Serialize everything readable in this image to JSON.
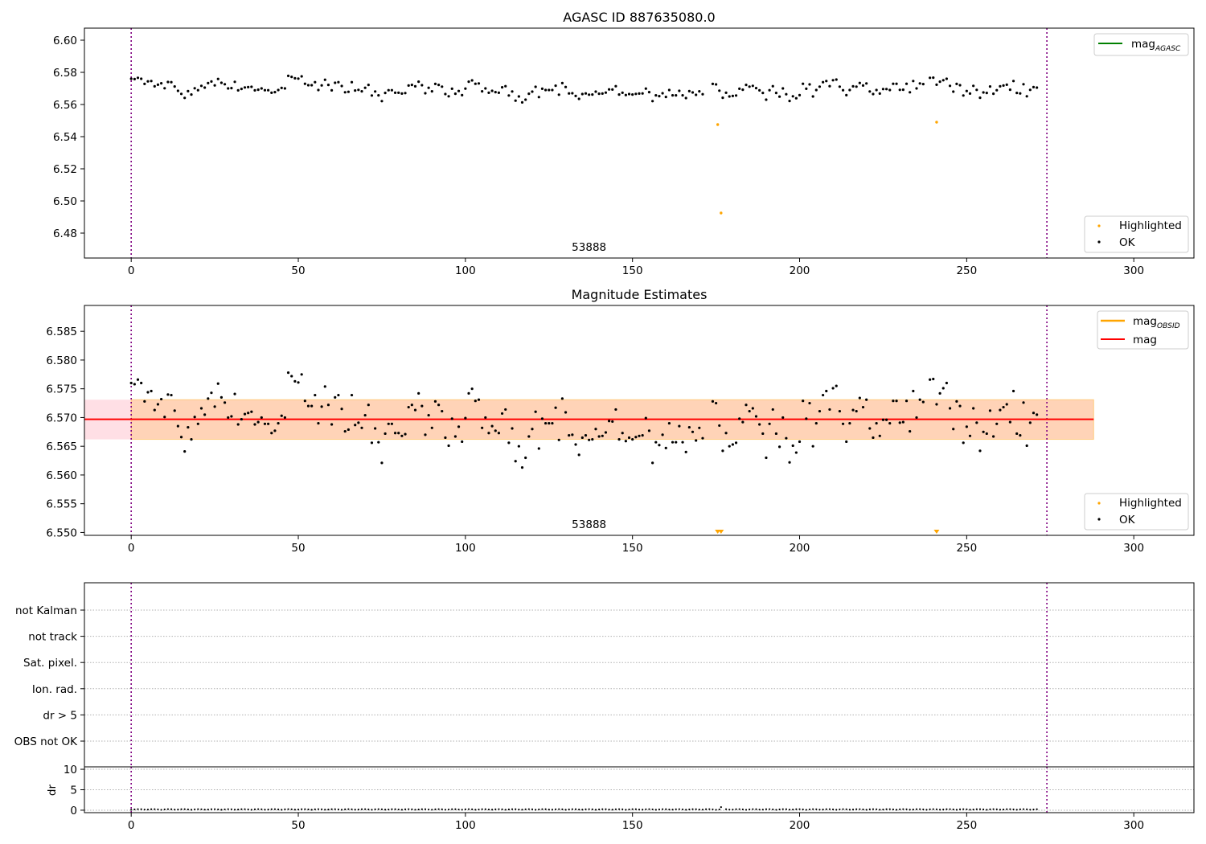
{
  "chart_data": [
    {
      "type": "scatter",
      "title": "AGASC ID 887635080.0",
      "xlim": [
        -14,
        318
      ],
      "ylim": [
        6.4645,
        6.6075
      ],
      "xticks": [
        0,
        50,
        100,
        150,
        200,
        250,
        300
      ],
      "yticks": [
        6.48,
        6.5,
        6.52,
        6.54,
        6.56,
        6.58,
        6.6
      ],
      "ytick_decimals": 2,
      "grid": false,
      "vlines": [
        0,
        274
      ],
      "annotation": {
        "text": "53888",
        "x": 137
      },
      "legend_upper": {
        "position": "upper-right",
        "entries": [
          {
            "label": "mag",
            "sub": "AGASC",
            "color": "#008000"
          }
        ]
      },
      "legend_lower": {
        "position": "lower-right",
        "entries": [
          {
            "label": "Highlighted",
            "color": "#ffa500"
          },
          {
            "label": "OK",
            "color": "#000000"
          }
        ]
      },
      "series": [
        {
          "name": "OK",
          "color": "#000000",
          "source": "main"
        },
        {
          "name": "Highlighted",
          "color": "#ffa500",
          "points": [
            [
              175.5,
              6.5475
            ],
            [
              176.5,
              6.4925
            ],
            [
              241,
              6.549
            ]
          ]
        }
      ]
    },
    {
      "type": "scatter",
      "title": "Magnitude Estimates",
      "xlim": [
        -14,
        318
      ],
      "ylim": [
        6.5495,
        6.5895
      ],
      "xticks": [
        0,
        50,
        100,
        150,
        200,
        250,
        300
      ],
      "yticks": [
        6.55,
        6.555,
        6.56,
        6.565,
        6.57,
        6.575,
        6.58,
        6.585
      ],
      "ytick_decimals": 3,
      "grid": false,
      "vlines": [
        0,
        274
      ],
      "annotation": {
        "text": "53888",
        "x": 137
      },
      "mag_line": {
        "value": 6.5697,
        "color": "#ff0000",
        "from": -14,
        "to": 288
      },
      "band": {
        "low": 6.5662,
        "high": 6.5731,
        "from": -14,
        "to": 288
      },
      "band_inner": {
        "from": 0,
        "to": 288
      },
      "legend_upper": {
        "position": "upper-right",
        "entries": [
          {
            "label": "mag",
            "sub": "OBSID",
            "color": "#ffa500"
          },
          {
            "label": "mag",
            "color": "#ff0000"
          }
        ]
      },
      "legend_lower": {
        "position": "lower-right",
        "entries": [
          {
            "label": "Highlighted",
            "color": "#ffa500"
          },
          {
            "label": "OK",
            "color": "#000000"
          }
        ]
      },
      "series": [
        {
          "name": "OK",
          "color": "#000000",
          "source": "main"
        },
        {
          "name": "Highlighted",
          "color": "#ffa500",
          "marker": "down-triangle",
          "points": [
            [
              175.5,
              6.5505
            ],
            [
              176.5,
              6.5505
            ],
            [
              241,
              6.5505
            ]
          ]
        }
      ]
    },
    {
      "type": "scatter",
      "title": "",
      "categories": [
        "not Kalman",
        "not track",
        "Sat. pixel.",
        "Ion. rad.",
        "dr > 5",
        "OBS not OK"
      ],
      "xlim": [
        -14,
        318
      ],
      "vlines": [
        0,
        274
      ],
      "grid": "horizontal-dotted",
      "flags": []
    },
    {
      "type": "scatter",
      "title": "",
      "ylabel": "dr",
      "xlim": [
        -14,
        318
      ],
      "ylim": [
        -0.6,
        10.6
      ],
      "xticks": [
        0,
        50,
        100,
        150,
        200,
        250,
        300
      ],
      "yticks": [
        0,
        5,
        10
      ],
      "grid": "horizontal-dotted",
      "vlines": [
        0,
        274
      ],
      "dr_spike": {
        "x": 176.5,
        "y": 0.75
      }
    }
  ],
  "main_series": {
    "x_start": 0,
    "x_step": 1,
    "count": 275,
    "y": [
      6.576,
      6.5758,
      6.5766,
      6.576,
      6.5728,
      6.5744,
      6.5746,
      6.5713,
      6.5723,
      6.5732,
      6.5701,
      6.574,
      6.5739,
      6.5712,
      6.5685,
      6.5666,
      6.5641,
      6.5683,
      6.5662,
      6.5701,
      6.5689,
      6.5716,
      6.5705,
      6.5733,
      6.5743,
      6.5719,
      6.5759,
      6.5735,
      6.5726,
      6.57,
      6.5702,
      6.5741,
      6.5688,
      6.5697,
      6.5706,
      6.5708,
      6.571,
      6.5688,
      6.5692,
      6.57,
      6.5689,
      6.5689,
      6.5673,
      6.5677,
      6.569,
      6.5703,
      6.57,
      6.5778,
      6.5772,
      6.5763,
      6.5761,
      6.5775,
      6.5729,
      6.572,
      6.572,
      6.5739,
      6.569,
      6.5719,
      6.5754,
      6.5722,
      6.5688,
      6.5735,
      6.5739,
      6.5715,
      6.5676,
      6.5679,
      6.5739,
      6.5687,
      6.5691,
      6.5682,
      6.5704,
      6.5722,
      6.5656,
      6.5681,
      6.5657,
      6.5621,
      6.5672,
      6.5689,
      6.5689,
      6.5673,
      6.5673,
      6.5668,
      6.5671,
      6.5718,
      6.5722,
      6.5713,
      6.5742,
      6.572,
      6.567,
      6.5704,
      6.5682,
      6.5728,
      6.5722,
      6.5711,
      6.5665,
      6.5651,
      6.5698,
      6.5667,
      6.5684,
      6.5658,
      6.5699,
      6.5742,
      6.575,
      6.5729,
      6.5731,
      6.5682,
      6.57,
      6.5673,
      6.5685,
      6.5677,
      6.5673,
      6.5707,
      6.5714,
      6.5656,
      6.5681,
      6.5624,
      6.565,
      6.5613,
      6.563,
      6.5667,
      6.568,
      6.571,
      6.5646,
      6.5698,
      6.569,
      6.569,
      6.569,
      6.5717,
      6.5661,
      6.5733,
      6.5709,
      6.5669,
      6.567,
      6.5653,
      6.5635,
      6.5665,
      6.5669,
      6.5661,
      6.5662,
      6.568,
      6.5667,
      6.5668,
      6.5674,
      6.5694,
      6.5693,
      6.5714,
      6.5662,
      6.5673,
      6.5659,
      6.5665,
      6.5662,
      6.5666,
      6.5668,
      6.5669,
      6.5699,
      6.5677,
      6.5621,
      6.5657,
      6.5652,
      6.567,
      6.5647,
      6.569,
      6.5657,
      6.5657,
      6.5685,
      6.5657,
      6.564,
      6.5683,
      6.5675,
      6.566,
      6.5682,
      6.5664,
      6.55,
      6.55,
      6.5728,
      6.5725,
      6.5686,
      6.5642,
      6.5673,
      6.565,
      6.5653,
      6.5656,
      6.5698,
      6.5692,
      6.5722,
      6.5711,
      6.5716,
      6.5702,
      6.5688,
      6.5672,
      6.563,
      6.5689,
      6.5714,
      6.5672,
      6.5649,
      6.57,
      6.5664,
      6.5622,
      6.5651,
      6.5639,
      6.5658,
      6.5729,
      6.5698,
      6.5725,
      6.565,
      6.569,
      6.5711,
      6.5739,
      6.5746,
      6.5714,
      6.5751,
      6.5755,
      6.5711,
      6.5689,
      6.5658,
      6.569,
      6.5713,
      6.5711,
      6.5734,
      6.5718,
      6.5731,
      6.5681,
      6.5665,
      6.569,
      6.5668,
      6.5696,
      6.5696,
      6.569,
      6.5729,
      6.5729,
      6.5691,
      6.5692,
      6.5729,
      6.5676,
      6.5746,
      6.57,
      6.5731,
      6.5727,
      6.55,
      6.5766,
      6.5767,
      6.5723,
      6.5742,
      6.5751,
      6.576,
      6.5716,
      6.568,
      6.5728,
      6.572,
      6.5656,
      6.5684,
      6.5668,
      6.5716,
      6.5691,
      6.5642,
      6.5675,
      6.5672,
      6.5712,
      6.5667,
      6.5689,
      6.5713,
      6.5718,
      6.5723,
      6.5692,
      6.5746,
      6.5672,
      6.5669,
      6.5726,
      6.5651,
      6.5691,
      6.5708,
      6.5705
    ]
  }
}
